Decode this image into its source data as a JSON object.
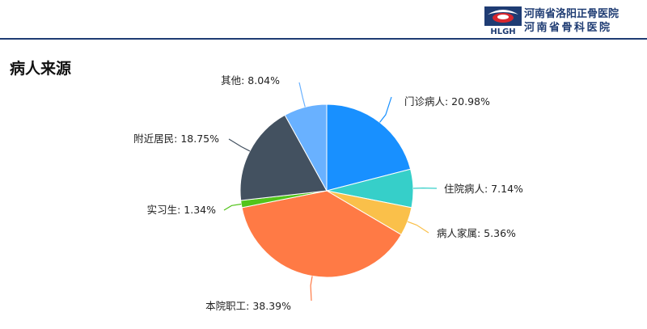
{
  "header": {
    "hospital_name_1": "河南省洛阳正骨医院",
    "hospital_name_2": "河南省骨科医院",
    "logo_text": "HLGH",
    "brand_color": "#1f3c73",
    "logo_red": "#d9272e"
  },
  "page_title": "病人来源",
  "chart_data": {
    "type": "pie",
    "title": "病人来源",
    "start_angle_deg": 0,
    "direction": "clockwise",
    "slices": [
      {
        "label": "门诊病人",
        "value": 20.98,
        "display": "门诊病人: 20.98%",
        "color": "#1890ff"
      },
      {
        "label": "住院病人",
        "value": 7.14,
        "display": "住院病人: 7.14%",
        "color": "#36cfc9"
      },
      {
        "label": "病人家属",
        "value": 5.36,
        "display": "病人家属: 5.36%",
        "color": "#fac04a"
      },
      {
        "label": "本院职工",
        "value": 38.39,
        "display": "本院职工: 38.39%",
        "color": "#ff7a45"
      },
      {
        "label": "实习生",
        "value": 1.34,
        "display": "实习生: 1.34%",
        "color": "#52c41a"
      },
      {
        "label": "附近居民",
        "value": 18.75,
        "display": "附近居民: 18.75%",
        "color": "#435160"
      },
      {
        "label": "其他",
        "value": 8.04,
        "display": "其他: 8.04%",
        "color": "#69b1ff"
      }
    ]
  }
}
